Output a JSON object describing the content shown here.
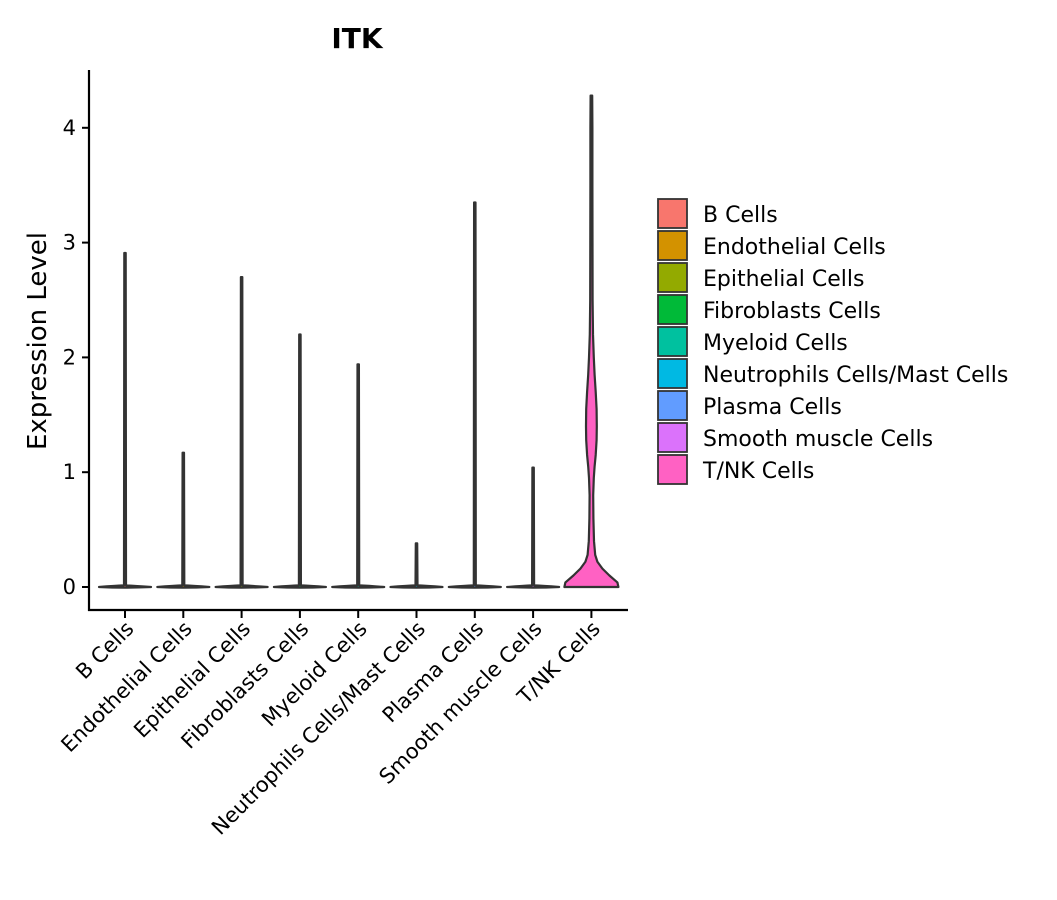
{
  "chart_data": {
    "type": "violin",
    "title": "ITK",
    "xlabel": "",
    "ylabel": "Expression Level",
    "ylim": [
      -0.2,
      4.5
    ],
    "yticks": [
      0,
      1,
      2,
      3,
      4
    ],
    "categories": [
      "B Cells",
      "Endothelial Cells",
      "Epithelial Cells",
      "Fibroblasts Cells",
      "Myeloid Cells",
      "Neutrophils Cells/Mast Cells",
      "Plasma Cells",
      "Smooth muscle Cells",
      "T/NK Cells"
    ],
    "max_values": [
      2.91,
      1.17,
      2.7,
      2.2,
      1.94,
      0.38,
      3.35,
      1.04,
      4.28
    ],
    "colors": [
      "#F8766D",
      "#D39200",
      "#93AA00",
      "#00BA38",
      "#00C19F",
      "#00B9E3",
      "#619CFF",
      "#DB72FB",
      "#FF61C3"
    ],
    "legend": {
      "position": "right",
      "entries": [
        "B Cells",
        "Endothelial Cells",
        "Epithelial Cells",
        "Fibroblasts Cells",
        "Myeloid Cells",
        "Neutrophils Cells/Mast Cells",
        "Plasma Cells",
        "Smooth muscle Cells",
        "T/NK Cells"
      ]
    }
  }
}
